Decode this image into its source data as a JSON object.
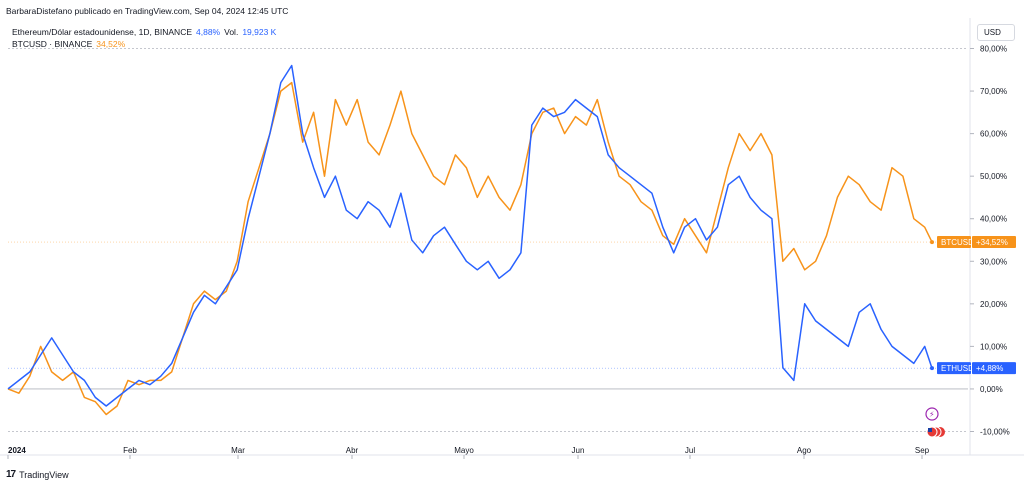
{
  "header": {
    "publisher_text": "BarbaraDistefano publicado en TradingView.com, Sep 04, 2024 12:45 UTC"
  },
  "legend": {
    "eth_name": "Ethereum/Dólar estadounidense, 1D, BINANCE",
    "eth_change": "4,88%",
    "eth_volume_label": "Vol.",
    "eth_volume": "19,923 K",
    "btc_name": "BTCUSD · BINANCE",
    "btc_change": "34,52%"
  },
  "currency_button": "USD",
  "footer": {
    "logo": "17",
    "brand": "TradingView"
  },
  "colors": {
    "eth": "#2962ff",
    "btc": "#f7931a",
    "grid": "#e0e3eb"
  },
  "chart_data": {
    "type": "line",
    "x_tick_labels": [
      "2024",
      "Feb",
      "Mar",
      "Abr",
      "Mayo",
      "Jun",
      "Jul",
      "Ago",
      "Sep"
    ],
    "x_range_days": [
      0,
      254
    ],
    "ylim": [
      -12,
      82
    ],
    "y_ticks": [
      -10,
      0,
      10,
      20,
      30,
      40,
      50,
      60,
      70,
      80
    ],
    "y_tick_labels": [
      "-10,00%",
      "0,00%",
      "10,00%",
      "20,00%",
      "30,00%",
      "40,00%",
      "50,00%",
      "60,00%",
      "70,00%",
      "80,00%"
    ],
    "grid": false,
    "series": [
      {
        "name": "BTCUSD",
        "tag": "+34,52%",
        "last": 34.52,
        "points": [
          [
            0,
            0
          ],
          [
            3,
            -1
          ],
          [
            6,
            3
          ],
          [
            9,
            10
          ],
          [
            12,
            4
          ],
          [
            15,
            2
          ],
          [
            18,
            4
          ],
          [
            21,
            -2
          ],
          [
            24,
            -3
          ],
          [
            27,
            -6
          ],
          [
            30,
            -4
          ],
          [
            33,
            2
          ],
          [
            36,
            1
          ],
          [
            39,
            2
          ],
          [
            42,
            2
          ],
          [
            45,
            4
          ],
          [
            48,
            12
          ],
          [
            51,
            20
          ],
          [
            54,
            23
          ],
          [
            57,
            21
          ],
          [
            60,
            23
          ],
          [
            63,
            30
          ],
          [
            66,
            44
          ],
          [
            69,
            52
          ],
          [
            72,
            60
          ],
          [
            75,
            70
          ],
          [
            78,
            72
          ],
          [
            81,
            58
          ],
          [
            84,
            65
          ],
          [
            87,
            50
          ],
          [
            90,
            68
          ],
          [
            93,
            62
          ],
          [
            96,
            68
          ],
          [
            99,
            58
          ],
          [
            102,
            55
          ],
          [
            105,
            62
          ],
          [
            108,
            70
          ],
          [
            111,
            60
          ],
          [
            114,
            55
          ],
          [
            117,
            50
          ],
          [
            120,
            48
          ],
          [
            123,
            55
          ],
          [
            126,
            52
          ],
          [
            129,
            45
          ],
          [
            132,
            50
          ],
          [
            135,
            45
          ],
          [
            138,
            42
          ],
          [
            141,
            48
          ],
          [
            144,
            60
          ],
          [
            147,
            65
          ],
          [
            150,
            66
          ],
          [
            153,
            60
          ],
          [
            156,
            64
          ],
          [
            159,
            62
          ],
          [
            162,
            68
          ],
          [
            165,
            58
          ],
          [
            168,
            50
          ],
          [
            171,
            48
          ],
          [
            174,
            44
          ],
          [
            177,
            42
          ],
          [
            180,
            36
          ],
          [
            183,
            34
          ],
          [
            186,
            40
          ],
          [
            189,
            36
          ],
          [
            192,
            32
          ],
          [
            195,
            42
          ],
          [
            198,
            52
          ],
          [
            201,
            60
          ],
          [
            204,
            56
          ],
          [
            207,
            60
          ],
          [
            210,
            55
          ],
          [
            213,
            30
          ],
          [
            216,
            33
          ],
          [
            219,
            28
          ],
          [
            222,
            30
          ],
          [
            225,
            36
          ],
          [
            228,
            45
          ],
          [
            231,
            50
          ],
          [
            234,
            48
          ],
          [
            237,
            44
          ],
          [
            240,
            42
          ],
          [
            243,
            52
          ],
          [
            246,
            50
          ],
          [
            249,
            40
          ],
          [
            252,
            38
          ],
          [
            254,
            34.5
          ]
        ]
      },
      {
        "name": "ETHUSD",
        "tag": "+4,88%",
        "last": 4.88,
        "points": [
          [
            0,
            0
          ],
          [
            3,
            2
          ],
          [
            6,
            4
          ],
          [
            9,
            8
          ],
          [
            12,
            12
          ],
          [
            15,
            8
          ],
          [
            18,
            4
          ],
          [
            21,
            2
          ],
          [
            24,
            -2
          ],
          [
            27,
            -4
          ],
          [
            30,
            -2
          ],
          [
            33,
            0
          ],
          [
            36,
            2
          ],
          [
            39,
            1
          ],
          [
            42,
            3
          ],
          [
            45,
            6
          ],
          [
            48,
            12
          ],
          [
            51,
            18
          ],
          [
            54,
            22
          ],
          [
            57,
            20
          ],
          [
            60,
            24
          ],
          [
            63,
            28
          ],
          [
            66,
            40
          ],
          [
            69,
            50
          ],
          [
            72,
            60
          ],
          [
            75,
            72
          ],
          [
            78,
            76
          ],
          [
            81,
            60
          ],
          [
            84,
            52
          ],
          [
            87,
            45
          ],
          [
            90,
            50
          ],
          [
            93,
            42
          ],
          [
            96,
            40
          ],
          [
            99,
            44
          ],
          [
            102,
            42
          ],
          [
            105,
            38
          ],
          [
            108,
            46
          ],
          [
            111,
            35
          ],
          [
            114,
            32
          ],
          [
            117,
            36
          ],
          [
            120,
            38
          ],
          [
            123,
            34
          ],
          [
            126,
            30
          ],
          [
            129,
            28
          ],
          [
            132,
            30
          ],
          [
            135,
            26
          ],
          [
            138,
            28
          ],
          [
            141,
            32
          ],
          [
            144,
            62
          ],
          [
            147,
            66
          ],
          [
            150,
            64
          ],
          [
            153,
            65
          ],
          [
            156,
            68
          ],
          [
            159,
            66
          ],
          [
            162,
            64
          ],
          [
            165,
            55
          ],
          [
            168,
            52
          ],
          [
            171,
            50
          ],
          [
            174,
            48
          ],
          [
            177,
            46
          ],
          [
            180,
            38
          ],
          [
            183,
            32
          ],
          [
            186,
            38
          ],
          [
            189,
            40
          ],
          [
            192,
            35
          ],
          [
            195,
            38
          ],
          [
            198,
            48
          ],
          [
            201,
            50
          ],
          [
            204,
            45
          ],
          [
            207,
            42
          ],
          [
            210,
            40
          ],
          [
            213,
            5
          ],
          [
            216,
            2
          ],
          [
            219,
            20
          ],
          [
            222,
            16
          ],
          [
            225,
            14
          ],
          [
            228,
            12
          ],
          [
            231,
            10
          ],
          [
            234,
            18
          ],
          [
            237,
            20
          ],
          [
            240,
            14
          ],
          [
            243,
            10
          ],
          [
            246,
            8
          ],
          [
            249,
            6
          ],
          [
            252,
            10
          ],
          [
            254,
            4.88
          ]
        ]
      }
    ]
  }
}
